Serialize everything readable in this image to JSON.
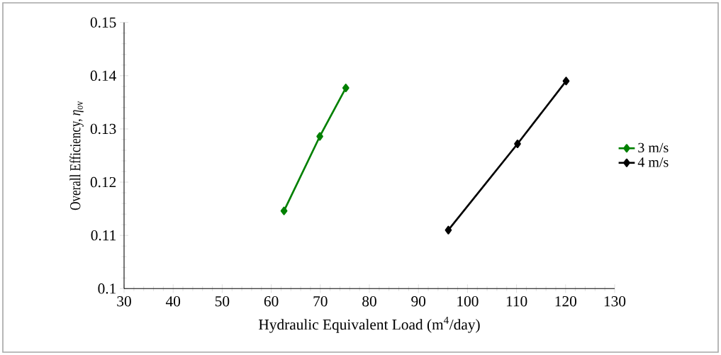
{
  "chart_data": {
    "type": "line",
    "xlabel": "Hydraulic Equivalent Load (m$^{4}$/day)",
    "ylabel": "Overall Efficiency, *η*$_{ov}$",
    "series": [
      {
        "name": "3 m/s",
        "color": "#008000",
        "x": [
          62.6,
          69.9,
          75.2
        ],
        "values": [
          0.1146,
          0.1286,
          0.1377
        ]
      },
      {
        "name": "4 m/s",
        "color": "#000000",
        "x": [
          96.1,
          110.2,
          120.1
        ],
        "values": [
          0.111,
          0.1272,
          0.139
        ]
      }
    ],
    "xlim": [
      30,
      130
    ],
    "xticks": [
      30,
      40,
      50,
      60,
      70,
      80,
      90,
      100,
      110,
      120,
      130
    ],
    "ylim": [
      0.1,
      0.15
    ],
    "yticks": [
      0.1,
      0.11,
      0.12,
      0.13,
      0.14,
      0.15
    ],
    "grid": false,
    "legend": "right",
    "marker": "diamond",
    "line_style": "solid"
  }
}
